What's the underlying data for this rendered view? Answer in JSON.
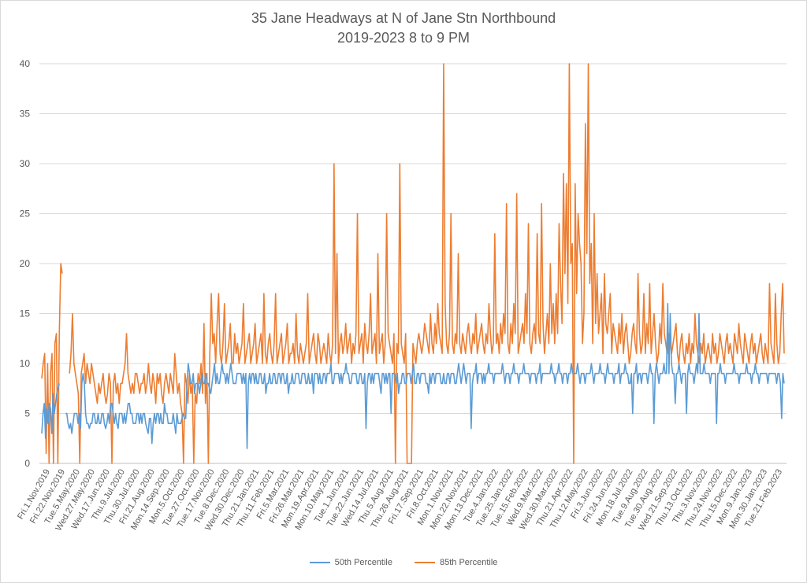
{
  "chart_data": {
    "type": "line",
    "title": "35 Jane Headways at N of Jane Stn Northbound",
    "subtitle": "2019-2023 8 to 9 PM",
    "xlabel": "",
    "ylabel": "",
    "ylim": [
      0,
      40
    ],
    "y_ticks": [
      0,
      5,
      10,
      15,
      20,
      25,
      30,
      35,
      40
    ],
    "grid": "horizontal",
    "legend_position": "bottom",
    "x_tick_labels": [
      "Fri.1.Nov.2019",
      "Fri.22.Nov.2019",
      "Tue.5.May.2020",
      "Wed.27.May.2020",
      "Wed.17.Jun.2020",
      "Thu.9.Jul.2020",
      "Thu.30.Jul.2020",
      "Fri.21.Aug.2020",
      "Mon.14.Sep.2020",
      "Mon.5.Oct.2020",
      "Tue.27.Oct.2020",
      "Tue.17.Nov.2020",
      "Tue.8.Dec.2020",
      "Wed.30.Dec.2020",
      "Thu.21.Jan.2021",
      "Thu.11.Feb.2021",
      "Fri.5.Mar.2021",
      "Fri.26.Mar.2021",
      "Mon.19.Apr.2021",
      "Mon.10.May.2021",
      "Tue.1.Jun.2021",
      "Tue.22.Jun.2021",
      "Wed.14.Jul.2021",
      "Thu.5.Aug.2021",
      "Thu.26.Aug.2021",
      "Fri.17.Sep.2021",
      "Fri.8.Oct.2021",
      "Mon.1.Nov.2021",
      "Mon.22.Nov.2021",
      "Mon.13.Dec.2021",
      "Tue.4.Jan.2022",
      "Tue.25.Jan.2022",
      "Tue.15.Feb.2022",
      "Wed.9.Mar.2022",
      "Wed.30.Mar.2022",
      "Thu.21.Apr.2022",
      "Thu.12.May.2022",
      "Fri.3.Jun.2022",
      "Fri.24.Jun.2022",
      "Mon.18.Jul.2022",
      "Tue.9.Aug.2022",
      "Tue.30.Aug.2022",
      "Wed.21.Sep.2022",
      "Thu.13.Oct.2022",
      "Thu.3.Nov.2022",
      "Thu.24.Nov.2022",
      "Thu.15.Dec.2022",
      "Mon.9.Jan.2023",
      "Mon.30.Jan.2023",
      "Tue.21.Feb.2023"
    ],
    "series": [
      {
        "name": "50th Percentile",
        "color": "#5b9bd5",
        "values": [
          3,
          5,
          6,
          2.5,
          5.5,
          4,
          6,
          5.5,
          3,
          7,
          5,
          6,
          7,
          7.5,
          8,
          null,
          null,
          null,
          null,
          5,
          5,
          4,
          3.5,
          4,
          3,
          4,
          5,
          5,
          5,
          4,
          5,
          3.5,
          8,
          9,
          8,
          5,
          4,
          4,
          3.5,
          4,
          4,
          5,
          5,
          4,
          4,
          5,
          4,
          4,
          5,
          5,
          4,
          3.5,
          4,
          5,
          4,
          6,
          6,
          5,
          4,
          5,
          4,
          3.5,
          5,
          5,
          5,
          4,
          5,
          4,
          5,
          6,
          6,
          5,
          5,
          4,
          4,
          4,
          5,
          5,
          4,
          5,
          4,
          5,
          5,
          4,
          3.5,
          3,
          4.5,
          4.5,
          2,
          4,
          5,
          4,
          5,
          5,
          4,
          5,
          4,
          4,
          6,
          5,
          5,
          4,
          4,
          4,
          4,
          5,
          4,
          3,
          5,
          4,
          4,
          4,
          4.5,
          5,
          4.5,
          4.5,
          8,
          10,
          9,
          8,
          8,
          9,
          7,
          8,
          8,
          8,
          7,
          8,
          9,
          8,
          8,
          9,
          8,
          8,
          7.5,
          7,
          8,
          9,
          10,
          8,
          9,
          8,
          8,
          9,
          10,
          9,
          9,
          8,
          9,
          8,
          9,
          10,
          9,
          8,
          8,
          8,
          9,
          9,
          9,
          9,
          8,
          9,
          8,
          9,
          1.5,
          8,
          9,
          8,
          9,
          9,
          8,
          9,
          8,
          8,
          9,
          9,
          8,
          8,
          9,
          7,
          8,
          8,
          9,
          8,
          8,
          9,
          9,
          8,
          8,
          9,
          9,
          8,
          9,
          9,
          8,
          8,
          9,
          7,
          8,
          8,
          9,
          8,
          8,
          9,
          9,
          9,
          8,
          8,
          9,
          9,
          9,
          8,
          8,
          9,
          8,
          8,
          9,
          7,
          9,
          9,
          9,
          8,
          9,
          8,
          8,
          9,
          9,
          8,
          9,
          9,
          9,
          10,
          8,
          8,
          9,
          9,
          9,
          9,
          8,
          9,
          8,
          9,
          9,
          10,
          9,
          9,
          8,
          8,
          9,
          9,
          9,
          9,
          8,
          8,
          9,
          9,
          8,
          8,
          9,
          3.5,
          8,
          9,
          9,
          8,
          9,
          8,
          9,
          9,
          9,
          9,
          8,
          7,
          9,
          9,
          8,
          9,
          8,
          9,
          9,
          5,
          9,
          9,
          9,
          8,
          9,
          7,
          8,
          8,
          9,
          9,
          8,
          8,
          9,
          9,
          9,
          8,
          9,
          10,
          8,
          8,
          9,
          9,
          8,
          9,
          9,
          9,
          9,
          8,
          8,
          7,
          9,
          8,
          9,
          9,
          8,
          9,
          9,
          9,
          9,
          8,
          8,
          9,
          8,
          8,
          9,
          9,
          8,
          9,
          9,
          9,
          8,
          8,
          9,
          10,
          9,
          8,
          9,
          10,
          9,
          8,
          9,
          9,
          9,
          3.5,
          8,
          9,
          9,
          10,
          8,
          9,
          9,
          9,
          8,
          9,
          8,
          9,
          9,
          10,
          9,
          9,
          9,
          8,
          9,
          9,
          9,
          9,
          9,
          9,
          10,
          9,
          8,
          9,
          9,
          9,
          8,
          9,
          9,
          10,
          9,
          9,
          9,
          8,
          9,
          9,
          9,
          10,
          9,
          9,
          9,
          9,
          8,
          9,
          9,
          9,
          9,
          8,
          9,
          9,
          10,
          8,
          9,
          9,
          9,
          9,
          9,
          9,
          9,
          10,
          9,
          9,
          8,
          9,
          9,
          10,
          9,
          9,
          8,
          9,
          9,
          9,
          8,
          9,
          9,
          10,
          9,
          9,
          9,
          9,
          10,
          9,
          8,
          9,
          9,
          9,
          8,
          9,
          9,
          9,
          9,
          10,
          9,
          8,
          9,
          9,
          9,
          9,
          10,
          9,
          9,
          9,
          8,
          9,
          10,
          9,
          9,
          9,
          9,
          8,
          9,
          9,
          9,
          10,
          8,
          9,
          9,
          9,
          10,
          9,
          9,
          8,
          8,
          9,
          5,
          9,
          9,
          10,
          8,
          9,
          9,
          8,
          9,
          9,
          9,
          9,
          8,
          9,
          10,
          9,
          9,
          4,
          9,
          10,
          9,
          8,
          9,
          9,
          9,
          10,
          9,
          9,
          16,
          9,
          15,
          10,
          9,
          9,
          6,
          9,
          9,
          10,
          9,
          8,
          9,
          9,
          9,
          5,
          9,
          10,
          9,
          9,
          9,
          8,
          9,
          10,
          9,
          15,
          9,
          9,
          9,
          10,
          9,
          9,
          9,
          9,
          8,
          9,
          9,
          9,
          9,
          4,
          9,
          9,
          10,
          9,
          9,
          9,
          8,
          9,
          9,
          9,
          9,
          9,
          9,
          10,
          9,
          9,
          9,
          8,
          9,
          9,
          9,
          9,
          9,
          10,
          9,
          9,
          9,
          8,
          9,
          9,
          10,
          9,
          9,
          8,
          9,
          9,
          9,
          9,
          9,
          9,
          8,
          9,
          9,
          9,
          9,
          9,
          9,
          8,
          9,
          9,
          8,
          4.5,
          9,
          8
        ]
      },
      {
        "name": "85th Percentile",
        "color": "#ed7d31",
        "values": [
          8.5,
          10,
          11,
          1,
          10,
          0,
          9,
          11,
          0,
          12,
          13,
          0,
          13,
          20,
          19,
          null,
          null,
          null,
          null,
          9,
          11,
          15,
          10,
          9,
          8,
          7,
          0,
          9,
          10,
          11,
          8,
          10,
          9,
          8,
          10,
          9,
          8,
          7,
          6,
          8,
          7,
          8,
          9,
          7,
          6,
          7,
          9,
          8,
          0,
          8,
          9,
          7,
          8,
          6,
          8,
          8,
          9,
          10,
          13,
          9,
          8,
          7,
          8,
          7,
          9,
          9,
          8,
          7,
          8,
          8,
          9,
          7,
          8,
          10,
          8,
          7,
          9,
          8,
          6,
          9,
          8,
          9,
          7,
          6,
          8,
          9,
          8,
          7,
          9,
          8,
          7,
          11,
          9,
          7,
          8,
          6,
          5,
          0,
          9,
          8,
          6,
          9,
          7,
          8,
          0,
          7,
          6,
          9,
          8,
          10,
          7,
          14,
          6,
          9,
          0,
          11,
          17,
          12,
          13,
          10,
          14,
          17,
          11,
          10,
          12,
          16,
          10,
          11,
          12,
          14,
          10,
          10,
          13,
          11,
          12,
          10,
          11,
          12,
          16,
          10,
          11,
          12,
          13,
          10,
          11,
          12,
          14,
          10,
          11,
          12,
          13,
          10,
          17,
          11,
          10,
          12,
          13,
          11,
          10,
          12,
          17,
          10,
          11,
          12,
          13,
          10,
          11,
          12,
          14,
          10,
          11,
          11,
          12,
          10,
          15,
          11,
          10,
          12,
          11,
          10,
          11,
          12,
          17,
          10,
          11,
          12,
          13,
          11,
          10,
          13,
          12,
          10,
          11,
          12,
          11,
          10,
          13,
          11,
          10,
          12,
          30,
          11,
          21,
          10,
          12,
          13,
          11,
          12,
          14,
          11,
          12,
          13,
          10,
          12,
          11,
          13,
          25,
          11,
          12,
          13,
          10,
          14,
          12,
          11,
          13,
          17,
          11,
          12,
          13,
          10,
          21,
          11,
          12,
          13,
          10,
          12,
          25,
          13,
          12,
          11,
          10,
          13,
          0,
          12,
          11,
          30,
          12,
          11,
          10,
          13,
          0,
          0,
          0,
          0,
          12,
          11,
          10,
          12,
          13,
          12,
          11,
          12,
          14,
          13,
          12,
          11,
          15,
          12,
          11,
          14,
          12,
          16,
          13,
          12,
          11,
          40,
          16,
          12,
          11,
          13,
          25,
          12,
          11,
          13,
          12,
          21,
          12,
          11,
          13,
          12,
          11,
          13,
          14,
          12,
          11,
          13,
          12,
          15,
          11,
          12,
          13,
          14,
          12,
          11,
          13,
          12,
          16,
          13,
          11,
          12,
          23,
          12,
          13,
          11,
          14,
          12,
          15,
          13,
          26,
          12,
          11,
          14,
          12,
          16,
          13,
          27,
          11,
          12,
          13,
          14,
          12,
          17,
          13,
          24,
          12,
          11,
          13,
          14,
          12,
          23,
          13,
          12,
          26,
          14,
          11,
          13,
          15,
          12,
          20,
          13,
          16,
          12,
          17,
          13,
          24,
          18,
          14,
          29,
          19,
          28,
          16,
          40,
          20,
          22,
          0,
          28,
          17,
          25,
          22,
          20,
          12,
          15,
          34,
          21,
          40,
          18,
          22,
          12,
          25,
          14,
          19,
          13,
          15,
          17,
          11,
          19,
          14,
          13,
          15,
          17,
          11,
          14,
          13,
          12,
          11,
          14,
          12,
          15,
          11,
          13,
          14,
          12,
          10,
          11,
          13,
          14,
          12,
          11,
          19,
          13,
          11,
          12,
          17,
          11,
          14,
          12,
          18,
          11,
          13,
          15,
          12,
          10,
          11,
          14,
          12,
          18,
          13,
          12,
          11,
          13,
          12,
          11,
          12,
          13,
          14,
          11,
          10,
          12,
          13,
          11,
          10,
          12,
          11,
          13,
          10,
          12,
          11,
          15,
          12,
          11,
          10,
          12,
          11,
          13,
          10,
          11,
          12,
          11,
          10,
          13,
          11,
          12,
          10,
          11,
          13,
          12,
          11,
          10,
          12,
          13,
          11,
          12,
          11,
          10,
          13,
          12,
          11,
          14,
          12,
          11,
          10,
          13,
          12,
          11,
          10,
          12,
          13,
          11,
          12,
          10,
          11,
          12,
          13,
          11,
          10,
          12,
          11,
          10,
          18,
          12,
          11,
          10,
          17,
          12,
          10,
          11,
          15,
          18,
          11
        ]
      }
    ]
  }
}
